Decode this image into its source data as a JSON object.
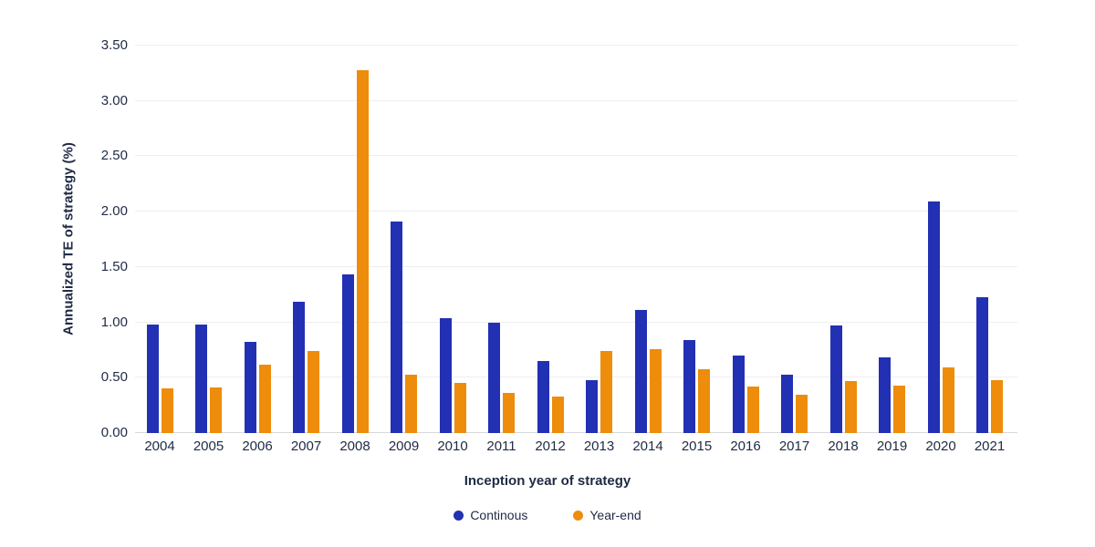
{
  "chart_data": {
    "type": "bar",
    "title": "",
    "xlabel": "Inception year of strategy",
    "ylabel": "Annualized TE of strategy (%)",
    "ylim": [
      0,
      3.5
    ],
    "ytick_values": [
      0,
      0.5,
      1,
      1.5,
      2,
      2.5,
      3,
      3.5
    ],
    "ytick_labels": [
      "0.00",
      "0.50",
      "1.00",
      "1.50",
      "2.00",
      "2.50",
      "3.00",
      "3.50"
    ],
    "grid": "horizontal",
    "legend_position": "bottom-center",
    "categories": [
      "2004",
      "2005",
      "2006",
      "2007",
      "2008",
      "2009",
      "2010",
      "2011",
      "2012",
      "2013",
      "2014",
      "2015",
      "2016",
      "2017",
      "2018",
      "2019",
      "2020",
      "2021"
    ],
    "series": [
      {
        "name": "Continous",
        "color": "#2230b4",
        "values": [
          0.98,
          0.98,
          0.82,
          1.19,
          1.43,
          1.91,
          1.04,
          1.0,
          0.65,
          0.48,
          1.11,
          0.84,
          0.7,
          0.53,
          0.97,
          0.68,
          2.09,
          1.23
        ]
      },
      {
        "name": "Year-end",
        "color": "#ee8c0b",
        "values": [
          0.4,
          0.41,
          0.62,
          0.74,
          3.28,
          0.53,
          0.45,
          0.36,
          0.33,
          0.74,
          0.76,
          0.58,
          0.42,
          0.35,
          0.47,
          0.43,
          0.59,
          0.48
        ]
      }
    ],
    "colors": {
      "text": "#1f2a44",
      "gridline": "#eceef0",
      "axis_line": "#d6d8dc",
      "background": "#ffffff"
    }
  }
}
